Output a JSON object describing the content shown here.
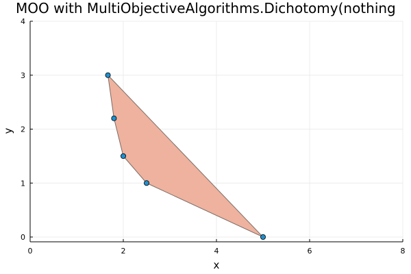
{
  "chart_data": {
    "type": "scatter",
    "title": "MOO with MultiObjectiveAlgorithms.Dichotomy(nothing",
    "xlabel": "x",
    "ylabel": "y",
    "xlim": [
      0,
      8
    ],
    "ylim": [
      0,
      4
    ],
    "x_ticks": [
      "0",
      "2",
      "4",
      "6",
      "8"
    ],
    "y_ticks": [
      "0",
      "1",
      "2",
      "3",
      "4"
    ],
    "grid": true,
    "legend": "none",
    "hull_polygon": [
      {
        "x": 1.67,
        "y": 3.0
      },
      {
        "x": 1.8,
        "y": 2.2
      },
      {
        "x": 2.0,
        "y": 1.5
      },
      {
        "x": 2.5,
        "y": 1.0
      },
      {
        "x": 5.0,
        "y": 0.0
      }
    ],
    "points": [
      {
        "x": 1.67,
        "y": 3.0
      },
      {
        "x": 1.8,
        "y": 2.2
      },
      {
        "x": 2.0,
        "y": 1.5
      },
      {
        "x": 2.5,
        "y": 1.0
      },
      {
        "x": 5.0,
        "y": 0.0
      }
    ],
    "colors": {
      "fill": "#eeb29e",
      "outline": "#7a6c66",
      "marker": "#1f8fcf",
      "marker_edge": "#000000",
      "grid": "#ececec",
      "axis": "#000000"
    }
  }
}
